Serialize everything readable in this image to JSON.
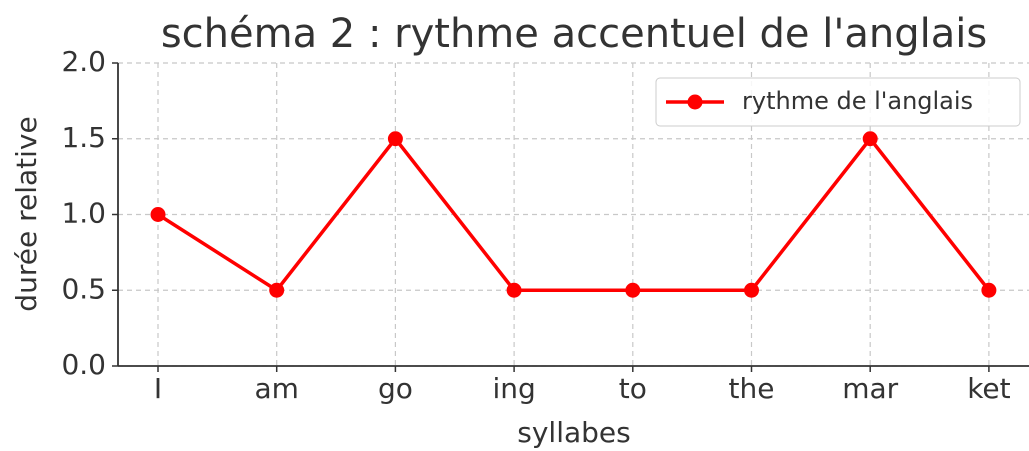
{
  "chart_data": {
    "type": "line",
    "title": "schéma 2 : rythme accentuel de l'anglais",
    "xlabel": "syllabes",
    "ylabel": "durée relative",
    "categories": [
      "I",
      "am",
      "go",
      "ing",
      "to",
      "the",
      "mar",
      "ket"
    ],
    "series": [
      {
        "name": "rythme de l'anglais",
        "color": "#ff0000",
        "values": [
          1.0,
          0.5,
          1.5,
          0.5,
          0.5,
          0.5,
          1.5,
          0.5
        ]
      }
    ],
    "ylim": [
      0,
      2
    ],
    "yticks": [
      {
        "value": 0,
        "label": "0.0"
      },
      0.5,
      {
        "value": 1,
        "label": "1.0"
      },
      1.5,
      {
        "value": 2,
        "label": "2.0"
      }
    ],
    "grid": true,
    "legend": "upper right"
  }
}
